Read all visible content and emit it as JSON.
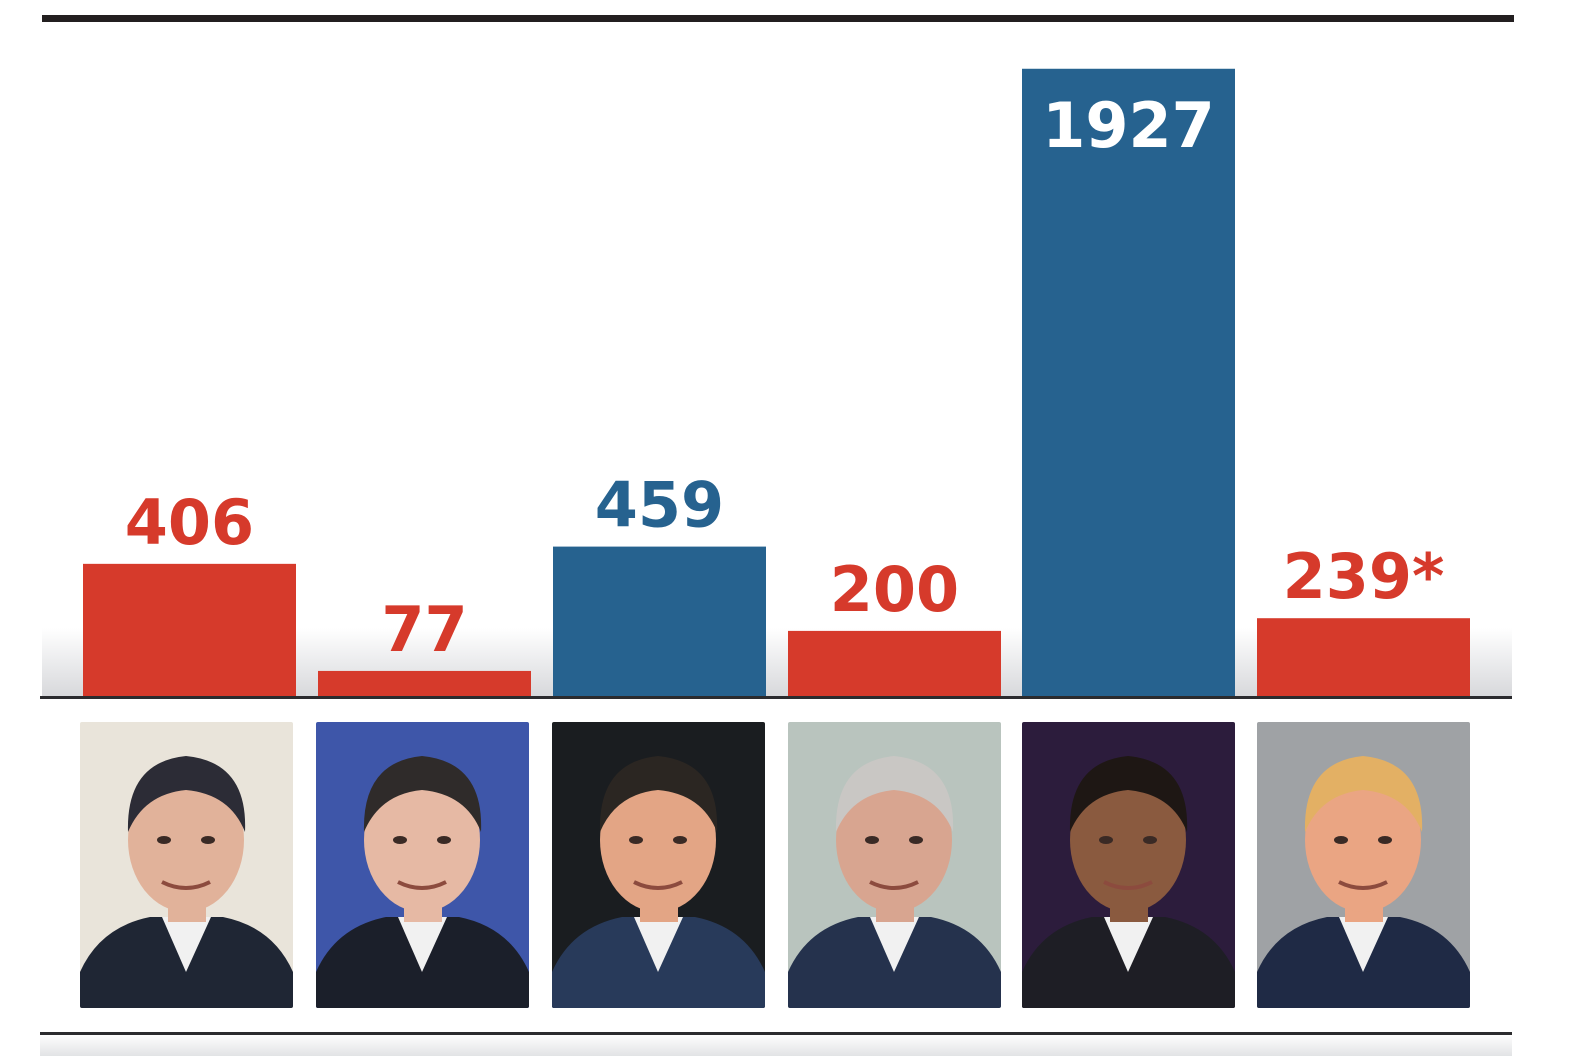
{
  "chart_data": {
    "type": "bar",
    "categories": [
      "",
      "",
      "",
      "",
      "",
      ""
    ],
    "values": [
      406,
      77,
      459,
      200,
      1927,
      239
    ],
    "value_labels": [
      "406",
      "77",
      "459",
      "200",
      "1927",
      "239*"
    ],
    "ylim": [
      0,
      2000
    ],
    "grid": false,
    "legend": "none",
    "colors": [
      "#d63a2b",
      "#d63a2b",
      "#26628f",
      "#d63a2b",
      "#26628f",
      "#d63a2b"
    ],
    "label_colors_inside": "#ffffff"
  },
  "portraits": [
    {
      "icon": "portrait-1-icon",
      "bg": "#e9e4da",
      "suit": "#1f2634",
      "skin": "#e1b29a",
      "hair": "#2c2c36"
    },
    {
      "icon": "portrait-2-icon",
      "bg": "#3e56a9",
      "suit": "#1b1f2a",
      "skin": "#e6b9a4",
      "hair": "#2f2b2a"
    },
    {
      "icon": "portrait-3-icon",
      "bg": "#1a1d20",
      "suit": "#283a5a",
      "skin": "#e3a585",
      "hair": "#2b2622"
    },
    {
      "icon": "portrait-4-icon",
      "bg": "#b9c4be",
      "suit": "#25324d",
      "skin": "#d8a590",
      "hair": "#c9c7c4"
    },
    {
      "icon": "portrait-5-icon",
      "bg": "#2c1c3c",
      "suit": "#1e1e25",
      "skin": "#8a5a3f",
      "hair": "#1e1714"
    },
    {
      "icon": "portrait-6-icon",
      "bg": "#9fa2a5",
      "suit": "#1f2a45",
      "skin": "#eaa583",
      "hair": "#e3b064"
    }
  ]
}
